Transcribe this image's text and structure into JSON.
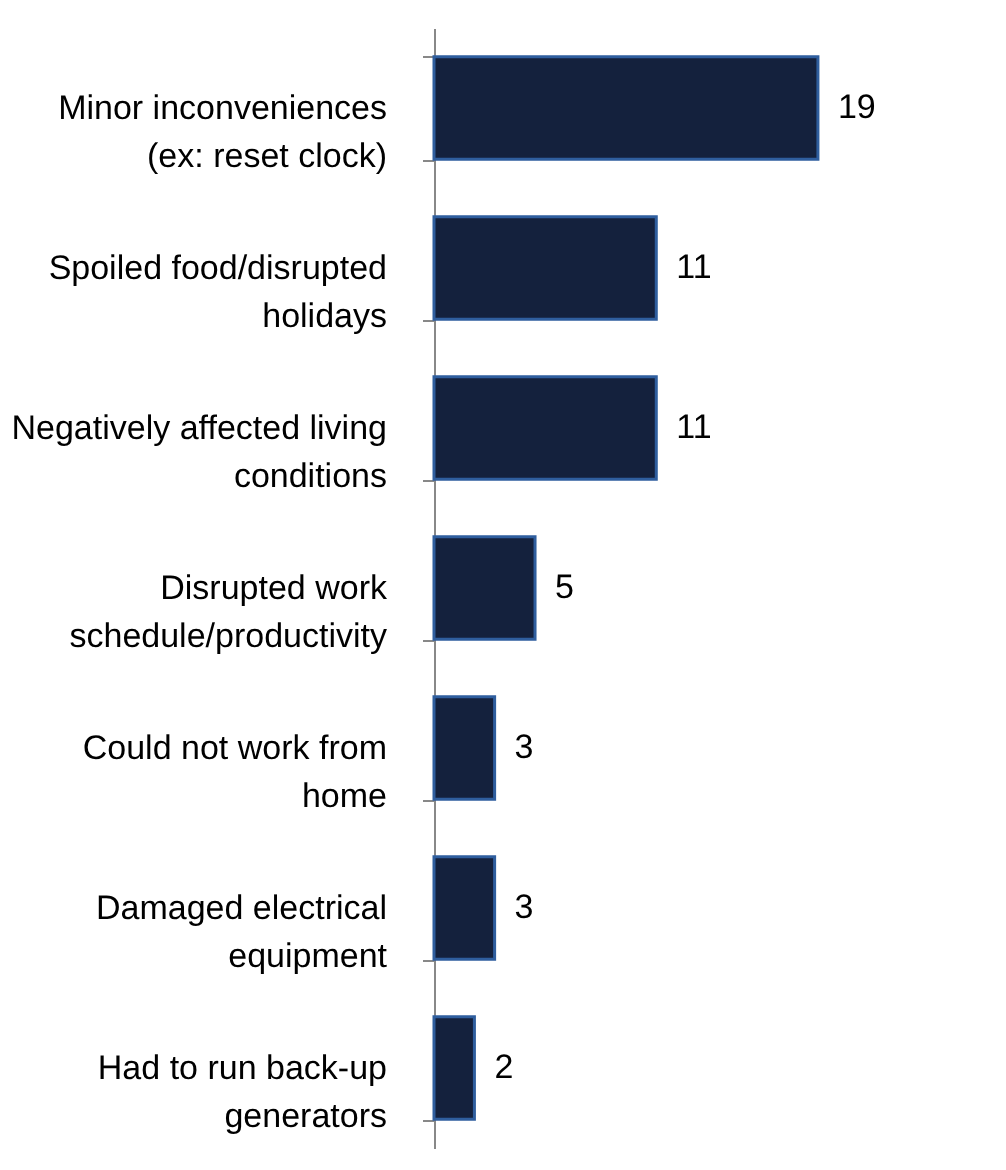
{
  "chart_data": {
    "type": "bar",
    "orientation": "horizontal",
    "categories": [
      "Minor inconveniences\n(ex: reset clock)",
      "Spoiled food/disrupted\nholidays",
      "Negatively affected living\nconditions",
      "Disrupted work\nschedule/productivity",
      "Could not work from\nhome",
      "Damaged electrical\nequipment",
      "Had to run back-up\ngenerators"
    ],
    "values": [
      19,
      11,
      11,
      5,
      3,
      3,
      2
    ],
    "color": "#14213d",
    "data_labels": true
  }
}
